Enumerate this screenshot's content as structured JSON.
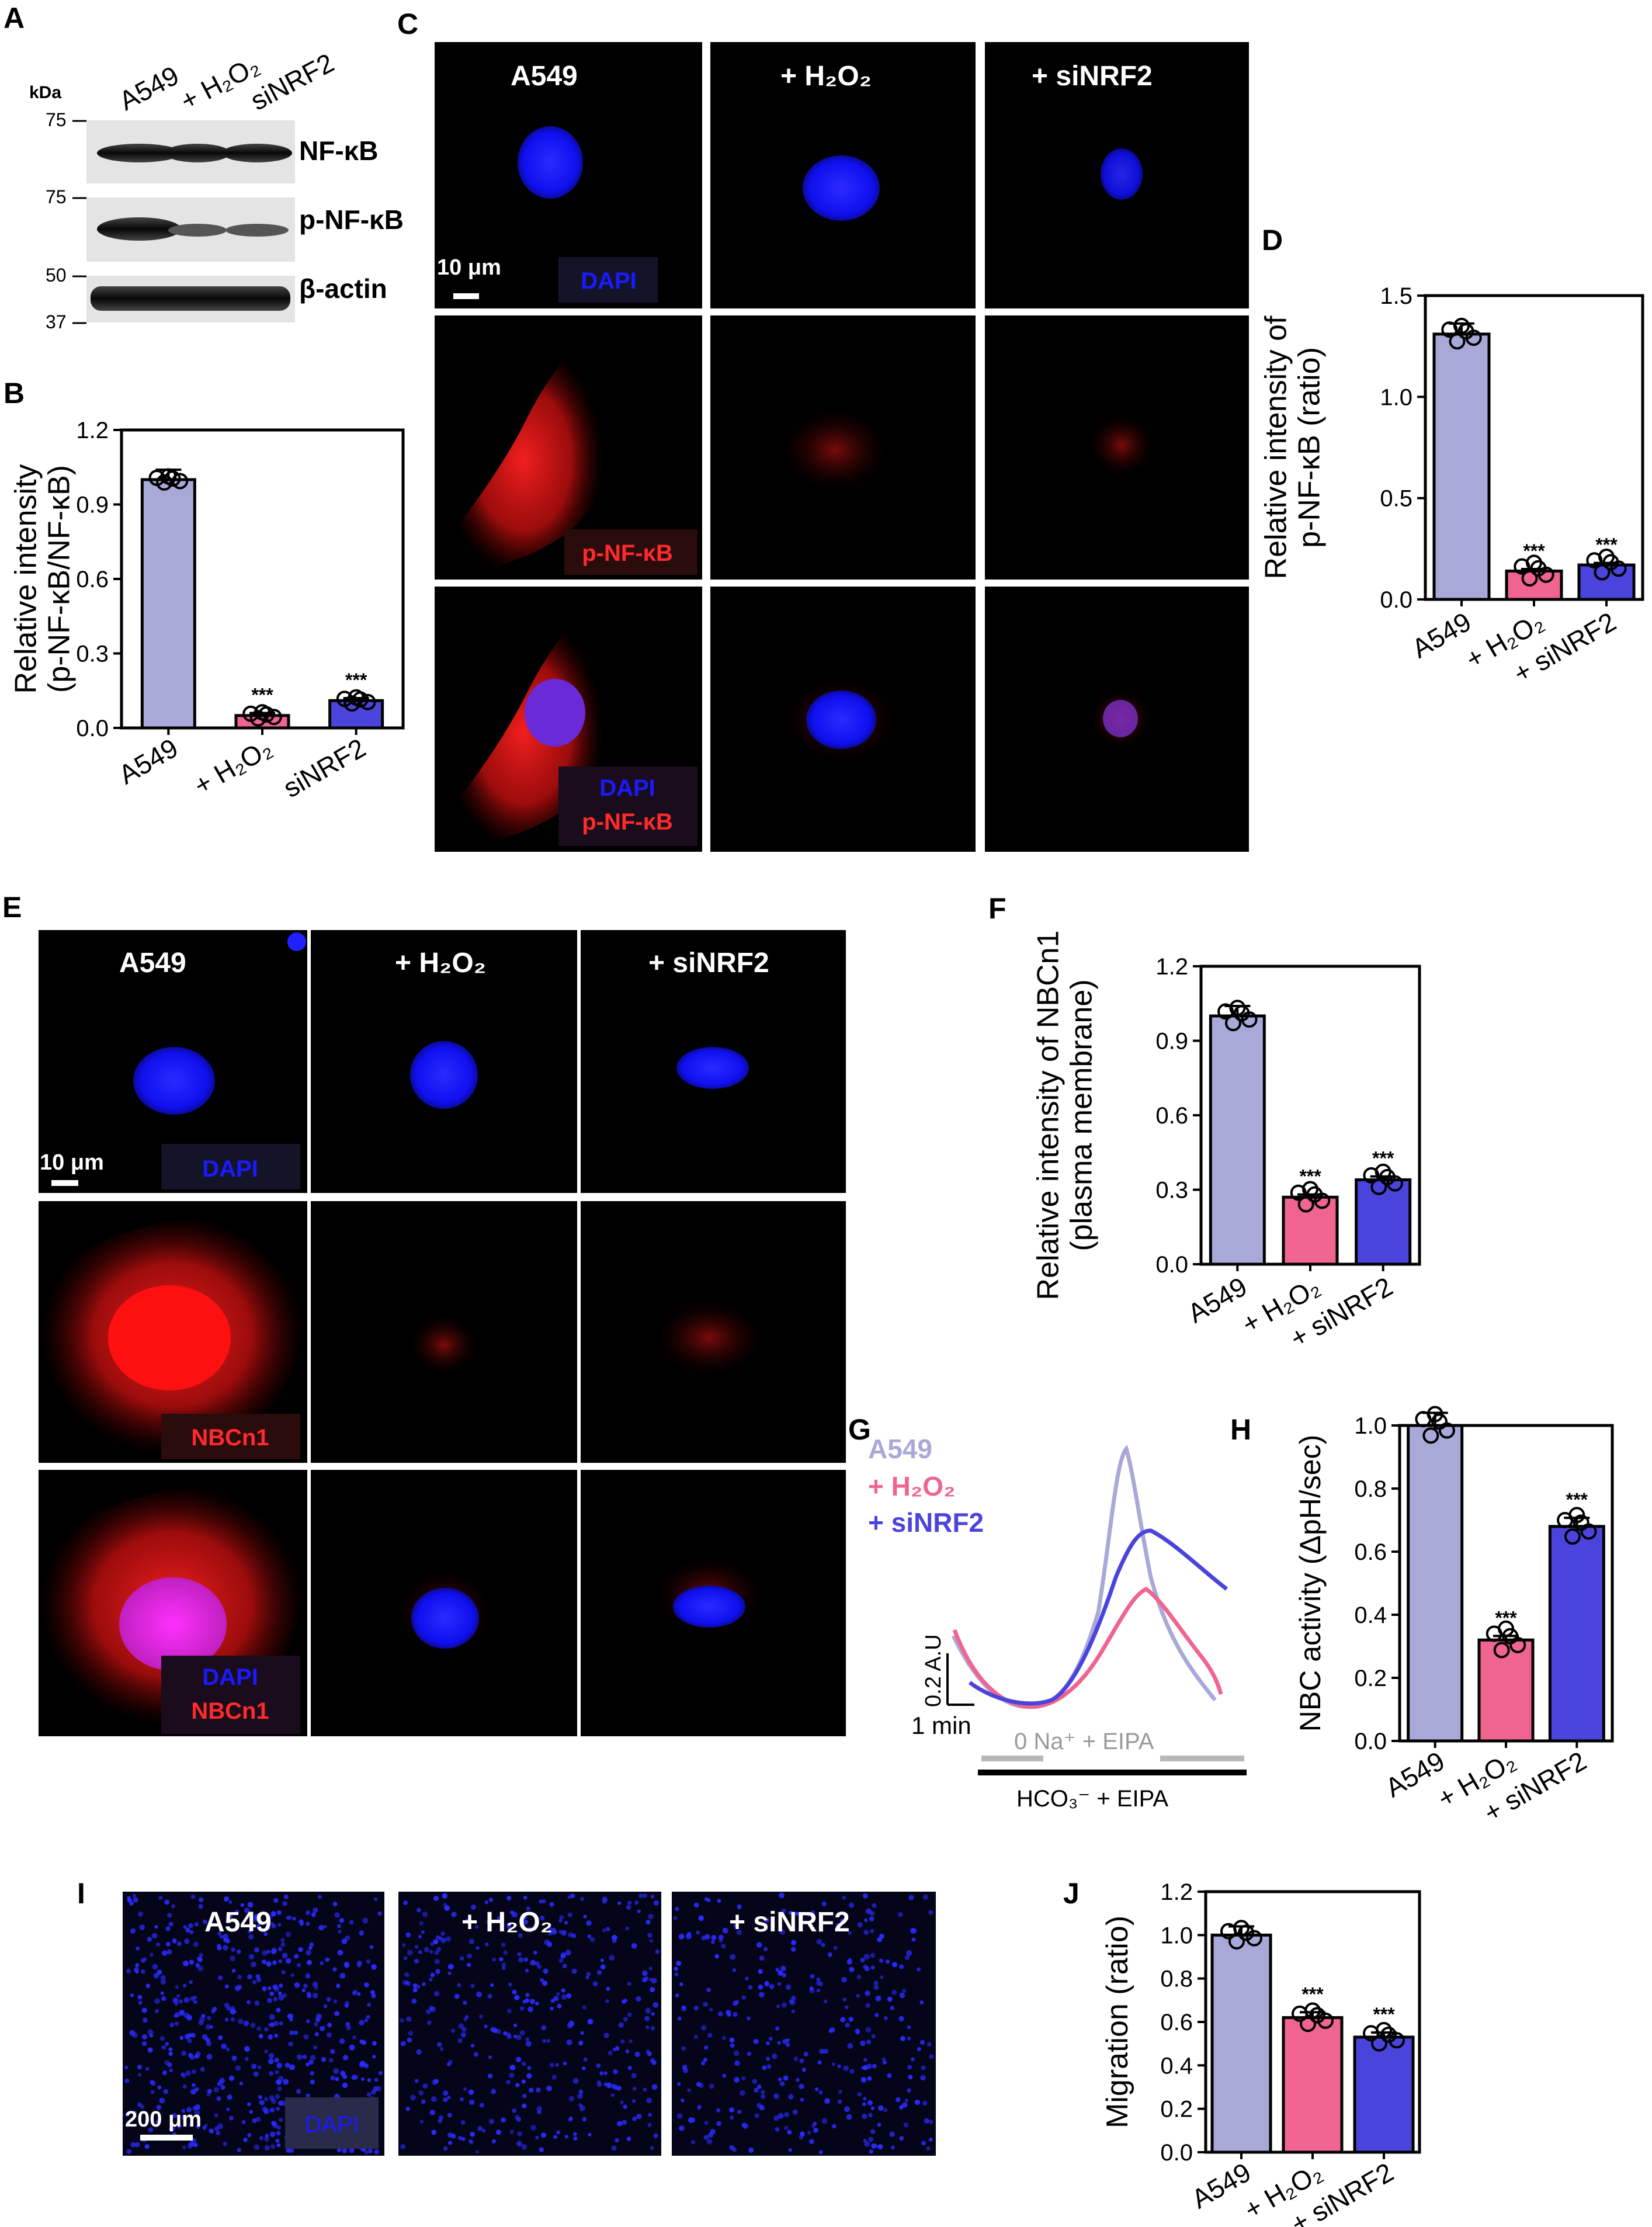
{
  "panel_letters": {
    "A": "A",
    "B": "B",
    "C": "C",
    "D": "D",
    "E": "E",
    "F": "F",
    "G": "G",
    "H": "H",
    "I": "I",
    "J": "J"
  },
  "colors": {
    "a549": "#a9a9d9",
    "h2o2": "#f0658f",
    "sinrf2": "#4a44dc",
    "nucleus": "#1414ff",
    "stain": "#ff1a1a"
  },
  "blot": {
    "kda_label": "kDa",
    "lanes": [
      "A549",
      "+ H₂O₂",
      "siNRF2"
    ],
    "bands": [
      {
        "marker": "75",
        "label": "NF-κB"
      },
      {
        "marker": "75",
        "label": "p-NF-κB"
      },
      {
        "marker": "50",
        "label": "β-actin",
        "marker2": "37"
      }
    ]
  },
  "panel_c": {
    "columns": [
      "A549",
      "+ H₂O₂",
      "+ siNRF2"
    ],
    "scale_bar": "10 μm",
    "row_labels": [
      "DAPI",
      "p-NF-κB",
      "DAPI",
      "p-NF-κB"
    ]
  },
  "panel_e": {
    "columns": [
      "A549",
      "+ H₂O₂",
      "+ siNRF2"
    ],
    "scale_bar": "10 μm",
    "row_labels": [
      "DAPI",
      "NBCn1",
      "DAPI",
      "NBCn1"
    ]
  },
  "panel_i": {
    "columns": [
      "A549",
      "+ H₂O₂",
      "+ siNRF2"
    ],
    "scale_bar": "200 μm",
    "stain_label": "DAPI"
  },
  "trace_g": {
    "legend": [
      "A549",
      "+ H₂O₂",
      "+ siNRF2"
    ],
    "scale_y": "0.2 A.U",
    "scale_x": "1 min",
    "bar_top": "0 Na⁺ + EIPA",
    "bar_bottom": "HCO₃⁻ + EIPA"
  },
  "sig": "***",
  "chart_data": [
    {
      "id": "B",
      "type": "bar",
      "ylabel": "Relative intensity (p-NF-κB/NF-κB)",
      "ylabel_lines": [
        "Relative intensity",
        "(p-NF-κB/NF-κB)"
      ],
      "categories": [
        "A549",
        "+ H₂O₂",
        "siNRF2"
      ],
      "values": [
        1.0,
        0.05,
        0.11
      ],
      "ylim": [
        0,
        1.2
      ],
      "yticks": [
        "0.0",
        "0.3",
        "0.6",
        "0.9",
        "1.2"
      ],
      "significance": [
        "",
        "***",
        "***"
      ]
    },
    {
      "id": "D",
      "type": "bar",
      "ylabel": "Relative intensity of p-NF-κB (ratio)",
      "ylabel_lines": [
        "Relative intensity of",
        "p-NF-κB (ratio)"
      ],
      "categories": [
        "A549",
        "+ H₂O₂",
        "+ siNRF2"
      ],
      "values": [
        1.31,
        0.14,
        0.17
      ],
      "ylim": [
        0,
        1.5
      ],
      "yticks": [
        "0.0",
        "0.5",
        "1.0",
        "1.5"
      ],
      "significance": [
        "",
        "***",
        "***"
      ]
    },
    {
      "id": "F",
      "type": "bar",
      "ylabel": "Relative intensity of NBCn1 (plasma membrane)",
      "ylabel_lines": [
        "Relative intensity of NBCn1",
        "(plasma  membrane)"
      ],
      "categories": [
        "A549",
        "+ H₂O₂",
        "+ siNRF2"
      ],
      "values": [
        1.0,
        0.27,
        0.34
      ],
      "ylim": [
        0,
        1.2
      ],
      "yticks": [
        "0.0",
        "0.3",
        "0.6",
        "0.9",
        "1.2"
      ],
      "significance": [
        "",
        "***",
        "***"
      ]
    },
    {
      "id": "H",
      "type": "bar",
      "ylabel": "NBC activity (ΔpH/sec)",
      "ylabel_lines": [
        "NBC activity (ΔpH/sec)"
      ],
      "categories": [
        "A549",
        "+ H₂O₂",
        "+ siNRF2"
      ],
      "values": [
        1.0,
        0.32,
        0.68
      ],
      "ylim": [
        0,
        1.0
      ],
      "yticks": [
        "0.0",
        "0.2",
        "0.4",
        "0.6",
        "0.8",
        "1.0"
      ],
      "significance": [
        "",
        "***",
        "***"
      ]
    },
    {
      "id": "J",
      "type": "bar",
      "ylabel": "Migration (ratio)",
      "ylabel_lines": [
        "Migration (ratio)"
      ],
      "categories": [
        "A549",
        "+ H₂O₂",
        "+ siNRF2"
      ],
      "values": [
        1.0,
        0.62,
        0.53
      ],
      "ylim": [
        0,
        1.2
      ],
      "yticks": [
        "0.0",
        "0.2",
        "0.4",
        "0.6",
        "0.8",
        "1.0",
        "1.2"
      ],
      "significance": [
        "",
        "***",
        "***"
      ]
    }
  ]
}
